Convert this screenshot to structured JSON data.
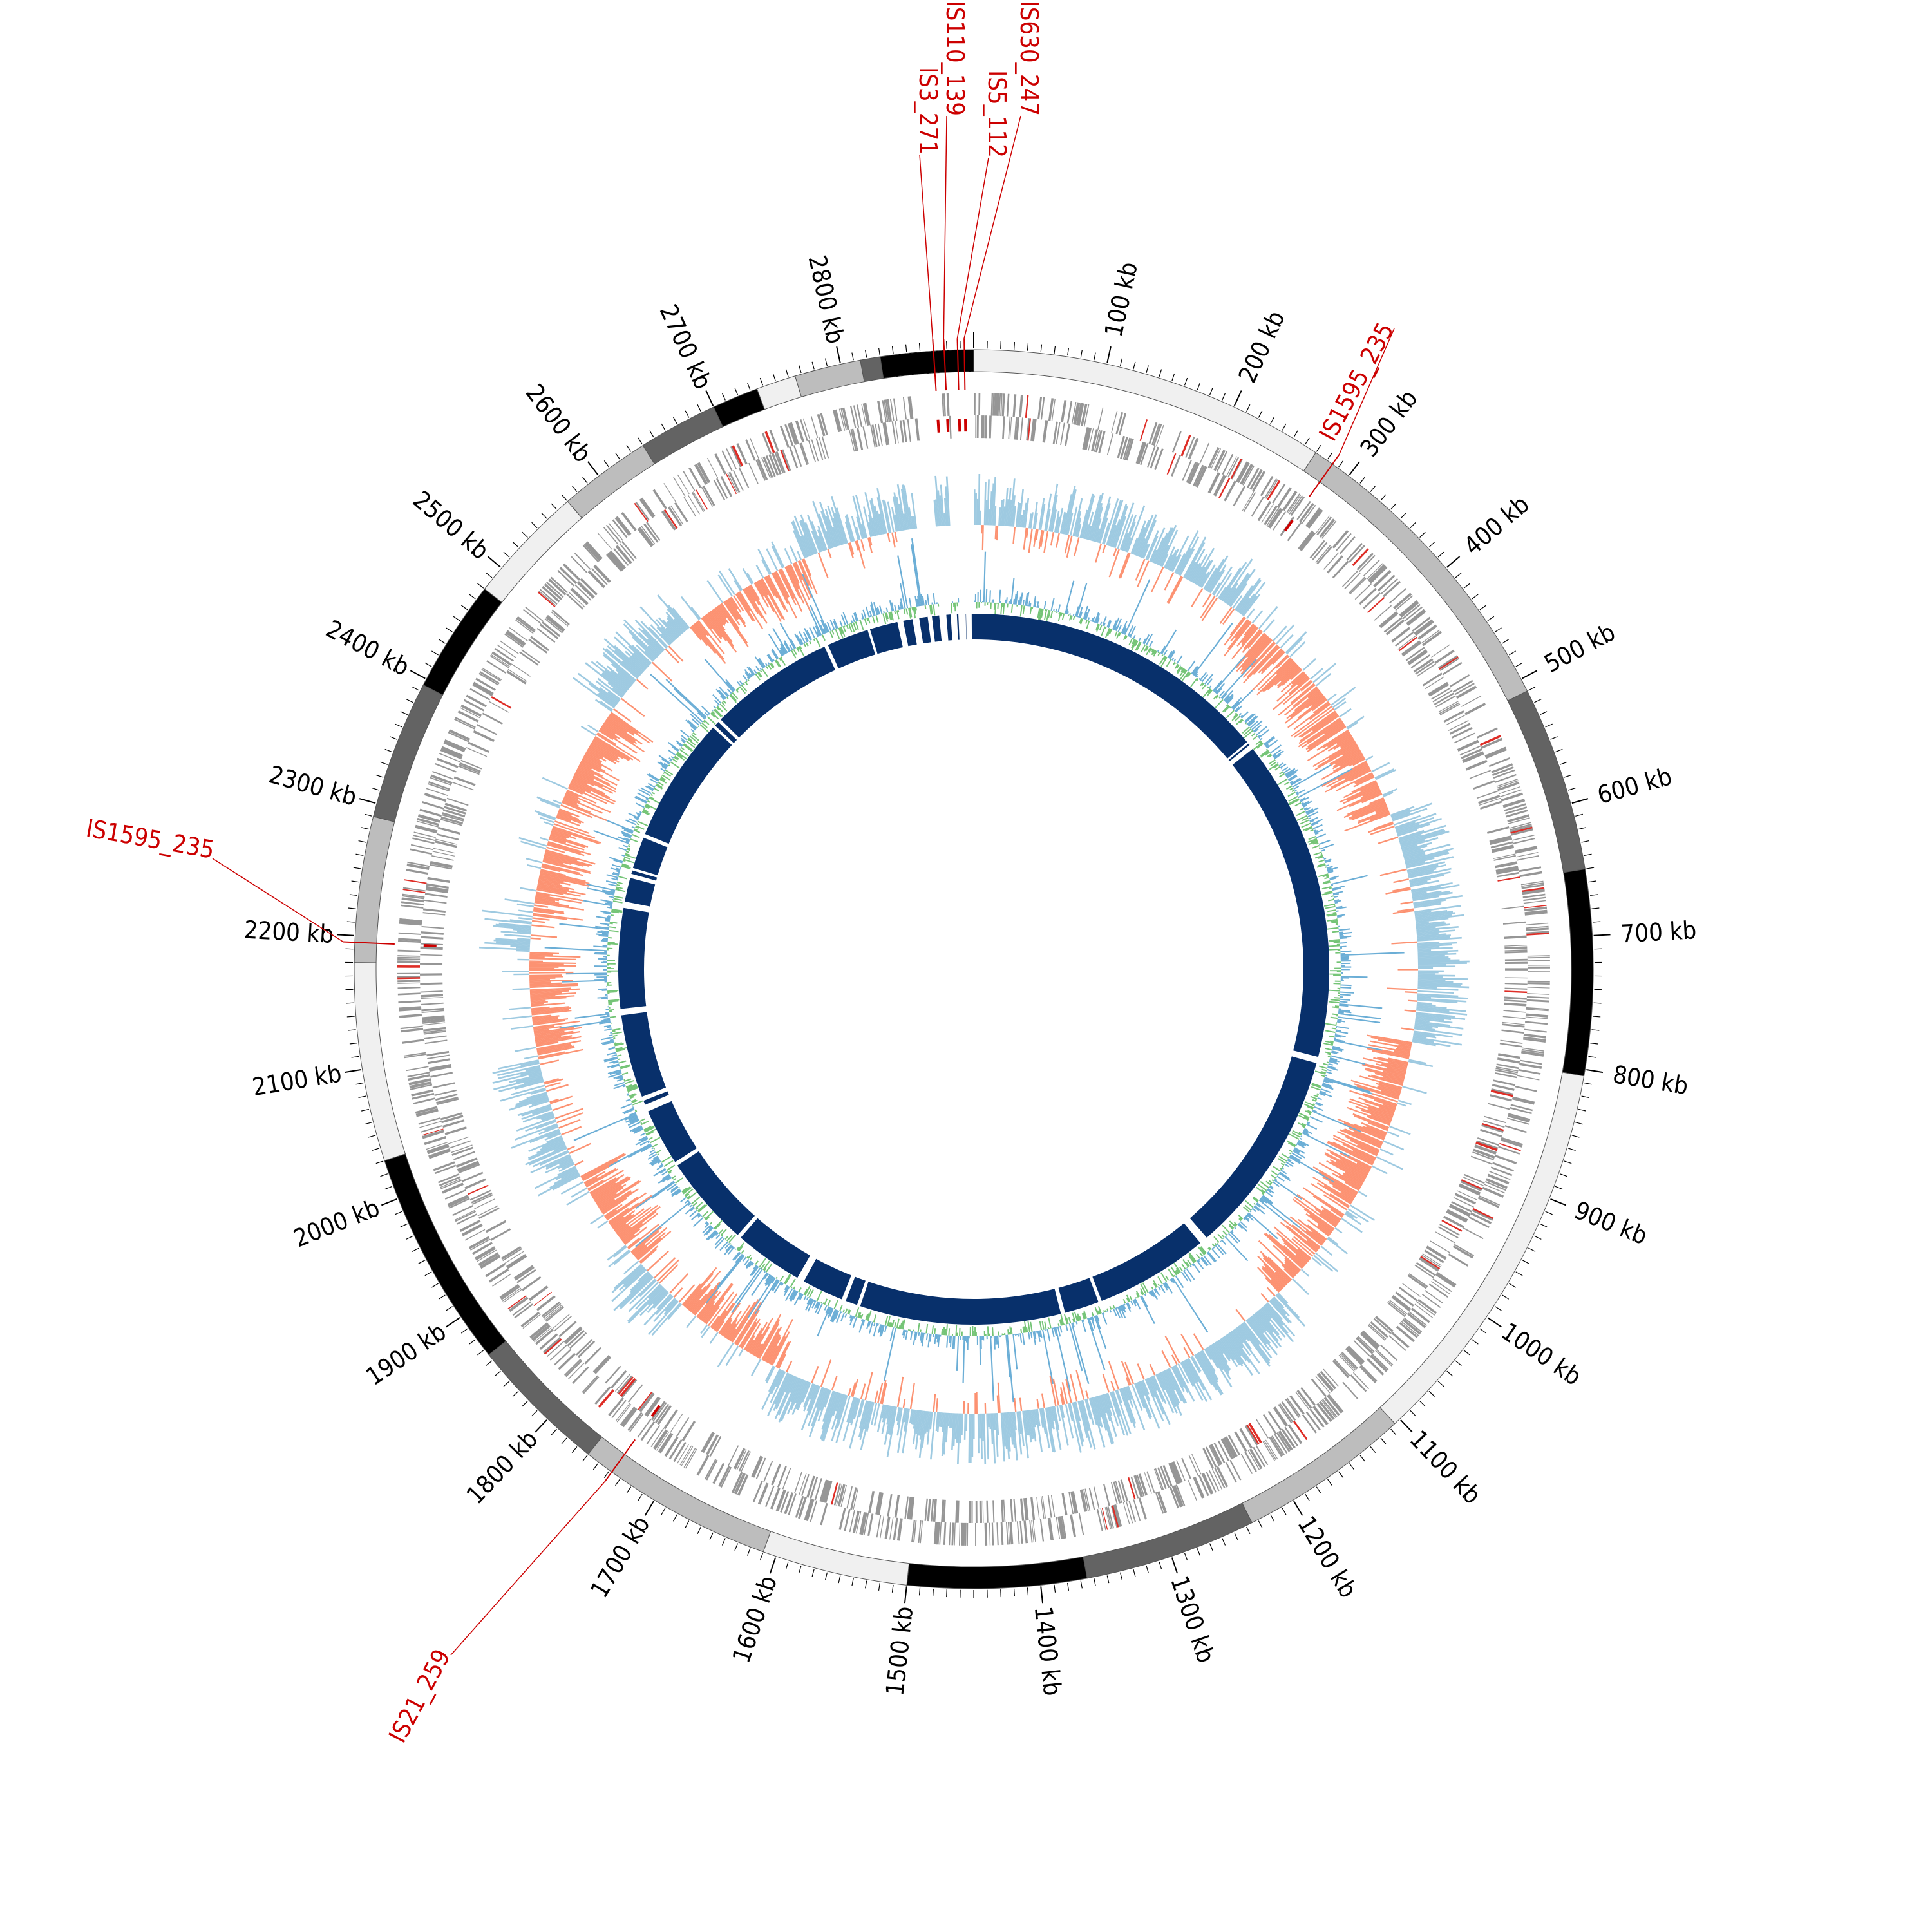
{
  "genome": {
    "length_kb": 2900,
    "tick_labels": [
      "100 kb",
      "200 kb",
      "300 kb",
      "400 kb",
      "500 kb",
      "600 kb",
      "700 kb",
      "800 kb",
      "900 kb",
      "1000 kb",
      "1100 kb",
      "1200 kb",
      "1300 kb",
      "1400 kb",
      "1500 kb",
      "1600 kb",
      "1700 kb",
      "1800 kb",
      "1900 kb",
      "2000 kb",
      "2100 kb",
      "2200 kb",
      "2300 kb",
      "2400 kb",
      "2500 kb",
      "2600 kb",
      "2700 kb",
      "2800 kb"
    ],
    "tick_values_kb": [
      100,
      200,
      300,
      400,
      500,
      600,
      700,
      800,
      900,
      1000,
      1100,
      1200,
      1300,
      1400,
      1500,
      1600,
      1700,
      1800,
      1900,
      2000,
      2100,
      2200,
      2300,
      2400,
      2500,
      2600,
      2700,
      2800
    ]
  },
  "contigs": {
    "shades": [
      "#f0f0f0",
      "#bdbdbd",
      "#636363",
      "#000000",
      "#f0f0f0",
      "#bdbdbd",
      "#636363",
      "#000000",
      "#f0f0f0",
      "#bdbdbd",
      "#636363",
      "#000000",
      "#f0f0f0",
      "#bdbdbd",
      "#636363",
      "#000000",
      "#f0f0f0",
      "#bdbdbd",
      "#636363",
      "#000000",
      "#f0f0f0",
      "#bdbdbd",
      "#636363",
      "#000000"
    ],
    "boundaries_kb": [
      0,
      270,
      510,
      650,
      805,
      1105,
      1235,
      1365,
      1500,
      1610,
      1760,
      1865,
      2030,
      2180,
      2290,
      2395,
      2480,
      2570,
      2640,
      2700,
      2735,
      2765,
      2815,
      2830,
      2900
    ]
  },
  "insertion_sequences": [
    {
      "label": "IS3_271",
      "position_kb": 2870,
      "color": "#cc0000"
    },
    {
      "label": "IS110_139",
      "position_kb": 2878,
      "color": "#cc0000"
    },
    {
      "label": "IS5_112",
      "position_kb": 2888,
      "color": "#cc0000"
    },
    {
      "label": "IS630_247",
      "position_kb": 2893,
      "color": "#cc0000"
    },
    {
      "label": "IS1595_235",
      "position_kb": 285,
      "color": "#cc0000"
    },
    {
      "label": "IS1595_235",
      "position_kb": 2195,
      "color": "#cc0000"
    },
    {
      "label": "IS21_259",
      "position_kb": 1738,
      "color": "#cc0000"
    }
  ],
  "tracks": {
    "cds_color": "#969696",
    "highlight_color": "#de2d26",
    "gc_skew_positive": "#9ecae1",
    "gc_skew_negative": "#fc9272",
    "gc_content": "#74c476",
    "homology_color": "#08306b",
    "homology_gaps_kb": [
      2880,
      2890,
      2895,
      2870,
      2855,
      405,
      410,
      840,
      1120,
      1128,
      1280,
      1330,
      1600,
      1620,
      1680,
      1780,
      1905,
      1985,
      2000,
      2115,
      2255,
      2295,
      2305,
      2350,
      2520,
      2530,
      2700,
      2760,
      2800,
      2820,
      2840
    ]
  }
}
